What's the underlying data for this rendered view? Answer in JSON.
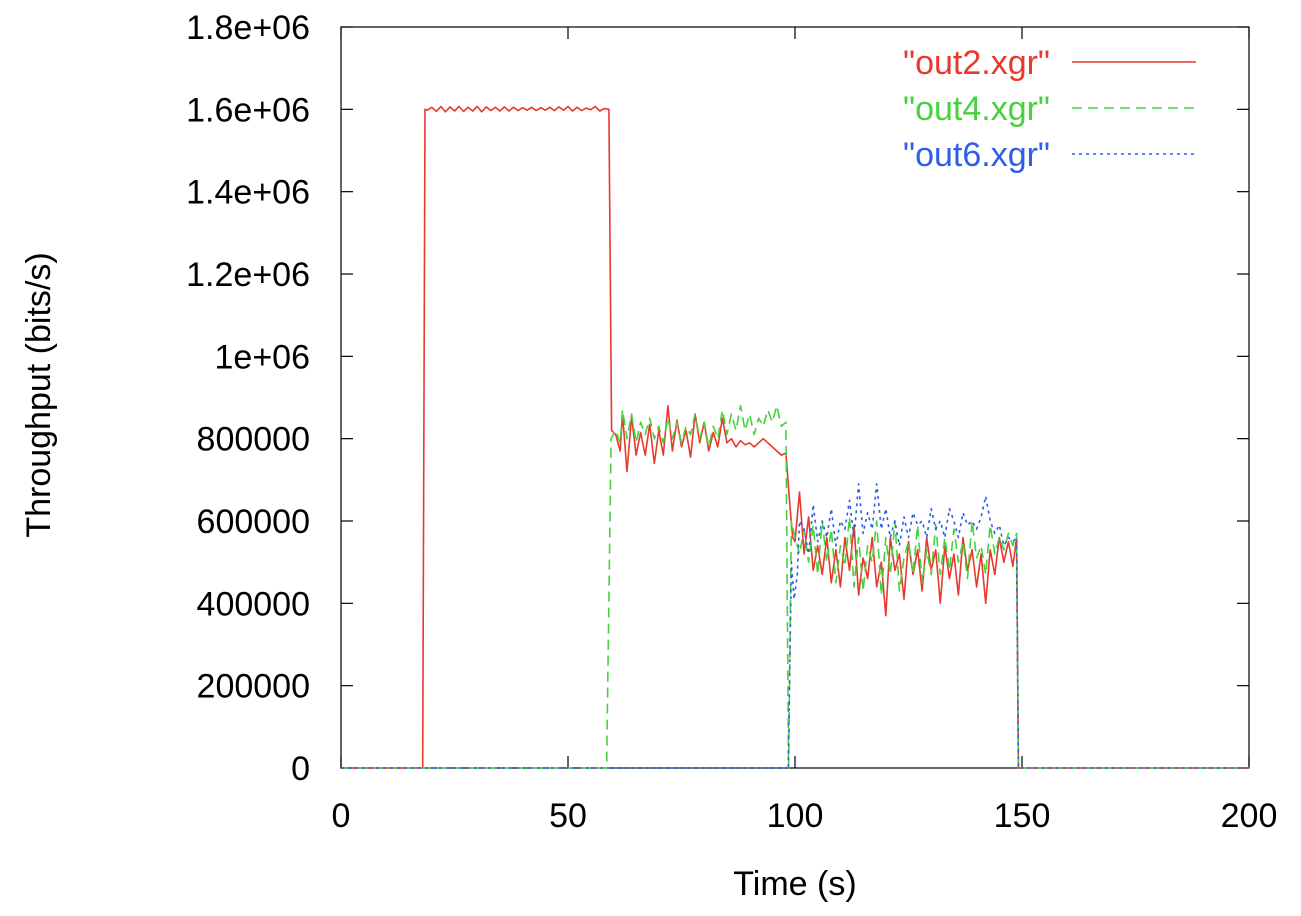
{
  "chart_data": {
    "type": "line",
    "title": "",
    "xlabel": "Time (s)",
    "ylabel": "Throughput (bits/s)",
    "xlim": [
      0,
      200
    ],
    "ylim": [
      0,
      1800000
    ],
    "x_ticks": [
      0,
      50,
      100,
      150,
      200
    ],
    "x_tick_labels": [
      "0",
      "50",
      "100",
      "150",
      "200"
    ],
    "y_ticks": [
      0,
      200000,
      400000,
      600000,
      800000,
      1000000,
      1200000,
      1400000,
      1600000,
      1800000
    ],
    "y_tick_labels": [
      "0",
      "200000",
      "400000",
      "600000",
      "800000",
      "1e+06",
      "1.2e+06",
      "1.4e+06",
      "1.6e+06",
      "1.8e+06"
    ],
    "grid": false,
    "legend_position": "top-right",
    "series": [
      {
        "name": "\"out2.xgr\"",
        "color": "#e8392d",
        "dash": "solid",
        "points": [
          [
            0,
            0
          ],
          [
            18,
            0
          ],
          [
            18.5,
            1600000
          ],
          [
            19,
            1598000
          ],
          [
            20,
            1605000
          ],
          [
            21,
            1595000
          ],
          [
            22,
            1607000
          ],
          [
            23,
            1594000
          ],
          [
            24,
            1606000
          ],
          [
            25,
            1596000
          ],
          [
            26,
            1607000
          ],
          [
            27,
            1595000
          ],
          [
            28,
            1605000
          ],
          [
            29,
            1596000
          ],
          [
            30,
            1607000
          ],
          [
            31,
            1594000
          ],
          [
            32,
            1606000
          ],
          [
            33,
            1597000
          ],
          [
            34,
            1605000
          ],
          [
            35,
            1596000
          ],
          [
            36,
            1606000
          ],
          [
            37,
            1596000
          ],
          [
            38,
            1605000
          ],
          [
            39,
            1597000
          ],
          [
            40,
            1604000
          ],
          [
            41,
            1598000
          ],
          [
            42,
            1605000
          ],
          [
            43,
            1597000
          ],
          [
            44,
            1604000
          ],
          [
            45,
            1598000
          ],
          [
            46,
            1605000
          ],
          [
            47,
            1597000
          ],
          [
            48,
            1606000
          ],
          [
            49,
            1598000
          ],
          [
            50,
            1607000
          ],
          [
            51,
            1596000
          ],
          [
            52,
            1605000
          ],
          [
            53,
            1597000
          ],
          [
            54,
            1603000
          ],
          [
            55,
            1599000
          ],
          [
            56,
            1607000
          ],
          [
            57,
            1596000
          ],
          [
            58,
            1602000
          ],
          [
            59,
            1600000
          ],
          [
            59.6,
            820000
          ],
          [
            60.5,
            810000
          ],
          [
            61.5,
            770000
          ],
          [
            62,
            860000
          ],
          [
            63,
            720000
          ],
          [
            64,
            855000
          ],
          [
            65,
            760000
          ],
          [
            66,
            815000
          ],
          [
            67,
            760000
          ],
          [
            68,
            835000
          ],
          [
            69,
            740000
          ],
          [
            70,
            820000
          ],
          [
            71,
            760000
          ],
          [
            72,
            880000
          ],
          [
            73,
            770000
          ],
          [
            74,
            845000
          ],
          [
            75,
            780000
          ],
          [
            76,
            820000
          ],
          [
            77,
            755000
          ],
          [
            78,
            860000
          ],
          [
            79,
            790000
          ],
          [
            80,
            840000
          ],
          [
            81,
            770000
          ],
          [
            82,
            815000
          ],
          [
            83,
            780000
          ],
          [
            84,
            850000
          ],
          [
            85,
            790000
          ],
          [
            86,
            800000
          ],
          [
            87,
            780000
          ],
          [
            88,
            795000
          ],
          [
            89,
            785000
          ],
          [
            90,
            790000
          ],
          [
            91,
            780000
          ],
          [
            92,
            790000
          ],
          [
            93,
            800000
          ],
          [
            94,
            790000
          ],
          [
            95,
            780000
          ],
          [
            96,
            770000
          ],
          [
            97,
            760000
          ],
          [
            98,
            765000
          ],
          [
            99,
            620000
          ],
          [
            99.5,
            560000
          ],
          [
            100,
            550000
          ],
          [
            101,
            670000
          ],
          [
            102,
            520000
          ],
          [
            103,
            610000
          ],
          [
            104,
            480000
          ],
          [
            105,
            540000
          ],
          [
            106,
            470000
          ],
          [
            107,
            560000
          ],
          [
            108,
            450000
          ],
          [
            109,
            530000
          ],
          [
            110,
            440000
          ],
          [
            111,
            560000
          ],
          [
            112,
            480000
          ],
          [
            113,
            590000
          ],
          [
            114,
            420000
          ],
          [
            115,
            510000
          ],
          [
            116,
            460000
          ],
          [
            117,
            560000
          ],
          [
            118,
            440000
          ],
          [
            119,
            500000
          ],
          [
            120,
            370000
          ],
          [
            121,
            560000
          ],
          [
            122,
            480000
          ],
          [
            123,
            520000
          ],
          [
            124,
            410000
          ],
          [
            125,
            550000
          ],
          [
            126,
            470000
          ],
          [
            127,
            530000
          ],
          [
            128,
            430000
          ],
          [
            129,
            560000
          ],
          [
            130,
            480000
          ],
          [
            131,
            530000
          ],
          [
            132,
            400000
          ],
          [
            133,
            540000
          ],
          [
            134,
            460000
          ],
          [
            135,
            520000
          ],
          [
            136,
            420000
          ],
          [
            137,
            560000
          ],
          [
            138,
            480000
          ],
          [
            139,
            530000
          ],
          [
            140,
            440000
          ],
          [
            141,
            520000
          ],
          [
            142,
            400000
          ],
          [
            143,
            530000
          ],
          [
            144,
            470000
          ],
          [
            145,
            560000
          ],
          [
            146,
            500000
          ],
          [
            147,
            550000
          ],
          [
            148,
            490000
          ],
          [
            148.8,
            560000
          ],
          [
            149.2,
            0
          ],
          [
            200,
            0
          ]
        ]
      },
      {
        "name": "\"out4.xgr\"",
        "color": "#46d23c",
        "dash": "10,6",
        "points": [
          [
            0,
            0
          ],
          [
            58.5,
            0
          ],
          [
            59.5,
            800000
          ],
          [
            60.5,
            820000
          ],
          [
            61.5,
            790000
          ],
          [
            62,
            870000
          ],
          [
            63,
            800000
          ],
          [
            64,
            860000
          ],
          [
            65,
            790000
          ],
          [
            66,
            840000
          ],
          [
            67,
            810000
          ],
          [
            68,
            850000
          ],
          [
            69,
            800000
          ],
          [
            70,
            830000
          ],
          [
            71,
            790000
          ],
          [
            72,
            850000
          ],
          [
            73,
            800000
          ],
          [
            74,
            840000
          ],
          [
            75,
            790000
          ],
          [
            76,
            830000
          ],
          [
            77,
            810000
          ],
          [
            78,
            860000
          ],
          [
            79,
            800000
          ],
          [
            80,
            840000
          ],
          [
            81,
            780000
          ],
          [
            82,
            830000
          ],
          [
            83,
            800000
          ],
          [
            84,
            870000
          ],
          [
            85,
            810000
          ],
          [
            86,
            860000
          ],
          [
            87,
            820000
          ],
          [
            88,
            880000
          ],
          [
            89,
            820000
          ],
          [
            90,
            860000
          ],
          [
            91,
            810000
          ],
          [
            92,
            850000
          ],
          [
            93,
            830000
          ],
          [
            94,
            870000
          ],
          [
            95,
            840000
          ],
          [
            96,
            880000
          ],
          [
            97,
            830000
          ],
          [
            98,
            840000
          ],
          [
            98.6,
            0
          ],
          [
            99.2,
            600000
          ],
          [
            100,
            560000
          ],
          [
            101,
            520000
          ],
          [
            102,
            580000
          ],
          [
            103,
            500000
          ],
          [
            104,
            590000
          ],
          [
            105,
            470000
          ],
          [
            106,
            600000
          ],
          [
            107,
            500000
          ],
          [
            108,
            580000
          ],
          [
            109,
            450000
          ],
          [
            110,
            540000
          ],
          [
            111,
            490000
          ],
          [
            112,
            610000
          ],
          [
            113,
            440000
          ],
          [
            114,
            560000
          ],
          [
            115,
            430000
          ],
          [
            116,
            540000
          ],
          [
            117,
            500000
          ],
          [
            118,
            600000
          ],
          [
            119,
            420000
          ],
          [
            120,
            560000
          ],
          [
            121,
            470000
          ],
          [
            122,
            600000
          ],
          [
            123,
            430000
          ],
          [
            124,
            510000
          ],
          [
            125,
            550000
          ],
          [
            126,
            470000
          ],
          [
            127,
            590000
          ],
          [
            128,
            450000
          ],
          [
            129,
            530000
          ],
          [
            130,
            470000
          ],
          [
            131,
            590000
          ],
          [
            132,
            470000
          ],
          [
            133,
            560000
          ],
          [
            134,
            480000
          ],
          [
            135,
            580000
          ],
          [
            136,
            500000
          ],
          [
            137,
            550000
          ],
          [
            138,
            460000
          ],
          [
            139,
            600000
          ],
          [
            140,
            510000
          ],
          [
            141,
            540000
          ],
          [
            142,
            470000
          ],
          [
            143,
            590000
          ],
          [
            144,
            520000
          ],
          [
            145,
            560000
          ],
          [
            146,
            530000
          ],
          [
            147,
            570000
          ],
          [
            148,
            540000
          ],
          [
            148.8,
            570000
          ],
          [
            149.2,
            0
          ],
          [
            200,
            0
          ]
        ]
      },
      {
        "name": "\"out6.xgr\"",
        "color": "#2d5ee6",
        "dash": "3,4",
        "points": [
          [
            0,
            0
          ],
          [
            98.5,
            0
          ],
          [
            99.2,
            500000
          ],
          [
            99.8,
            410000
          ],
          [
            100.5,
            470000
          ],
          [
            101,
            600000
          ],
          [
            102,
            580000
          ],
          [
            103,
            520000
          ],
          [
            104,
            640000
          ],
          [
            105,
            550000
          ],
          [
            106,
            600000
          ],
          [
            107,
            560000
          ],
          [
            108,
            630000
          ],
          [
            109,
            540000
          ],
          [
            110,
            600000
          ],
          [
            111,
            580000
          ],
          [
            112,
            650000
          ],
          [
            113,
            560000
          ],
          [
            114,
            690000
          ],
          [
            115,
            570000
          ],
          [
            116,
            620000
          ],
          [
            117,
            580000
          ],
          [
            118,
            690000
          ],
          [
            119,
            580000
          ],
          [
            120,
            630000
          ],
          [
            121,
            560000
          ],
          [
            122,
            600000
          ],
          [
            123,
            540000
          ],
          [
            124,
            610000
          ],
          [
            125,
            560000
          ],
          [
            126,
            620000
          ],
          [
            127,
            590000
          ],
          [
            128,
            600000
          ],
          [
            129,
            560000
          ],
          [
            130,
            630000
          ],
          [
            131,
            580000
          ],
          [
            132,
            600000
          ],
          [
            133,
            560000
          ],
          [
            134,
            630000
          ],
          [
            135,
            600000
          ],
          [
            136,
            560000
          ],
          [
            137,
            620000
          ],
          [
            138,
            590000
          ],
          [
            139,
            600000
          ],
          [
            140,
            580000
          ],
          [
            141,
            610000
          ],
          [
            142,
            660000
          ],
          [
            143,
            600000
          ],
          [
            144,
            570000
          ],
          [
            145,
            590000
          ],
          [
            146,
            540000
          ],
          [
            147,
            560000
          ],
          [
            148,
            550000
          ],
          [
            148.8,
            560000
          ],
          [
            149.2,
            0
          ],
          [
            200,
            0
          ]
        ]
      }
    ]
  }
}
